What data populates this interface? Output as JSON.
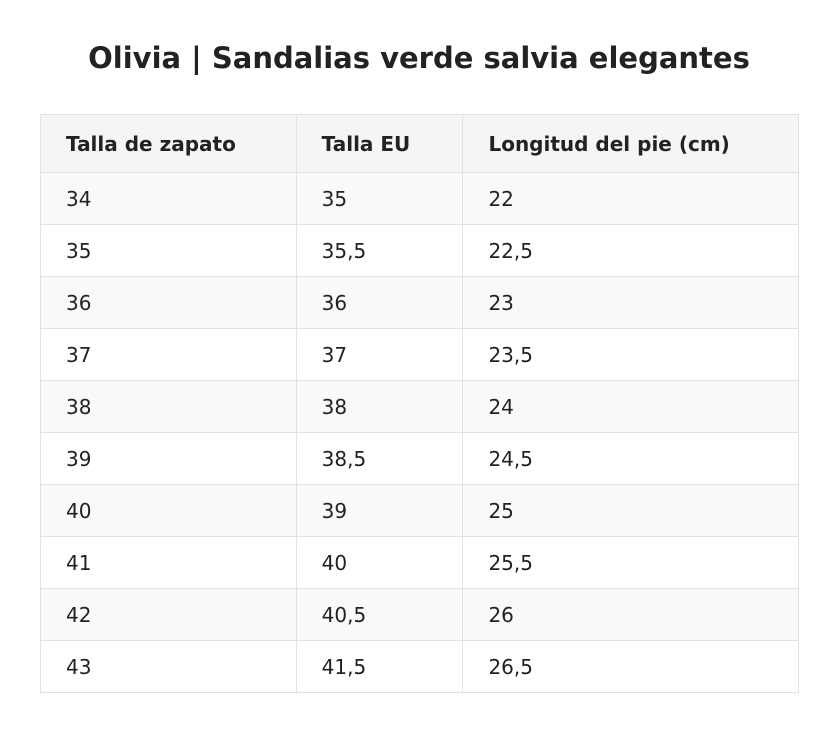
{
  "header": {
    "title": "Olivia | Sandalias verde salvia elegantes"
  },
  "table": {
    "columns": [
      "Talla de zapato",
      "Talla EU",
      "Longitud del pie (cm)"
    ],
    "rows": [
      [
        "34",
        "35",
        "22"
      ],
      [
        "35",
        "35,5",
        "22,5"
      ],
      [
        "36",
        "36",
        "23"
      ],
      [
        "37",
        "37",
        "23,5"
      ],
      [
        "38",
        "38",
        "24"
      ],
      [
        "39",
        "38,5",
        "24,5"
      ],
      [
        "40",
        "39",
        "25"
      ],
      [
        "41",
        "40",
        "25,5"
      ],
      [
        "42",
        "40,5",
        "26"
      ],
      [
        "43",
        "41,5",
        "26,5"
      ]
    ]
  }
}
